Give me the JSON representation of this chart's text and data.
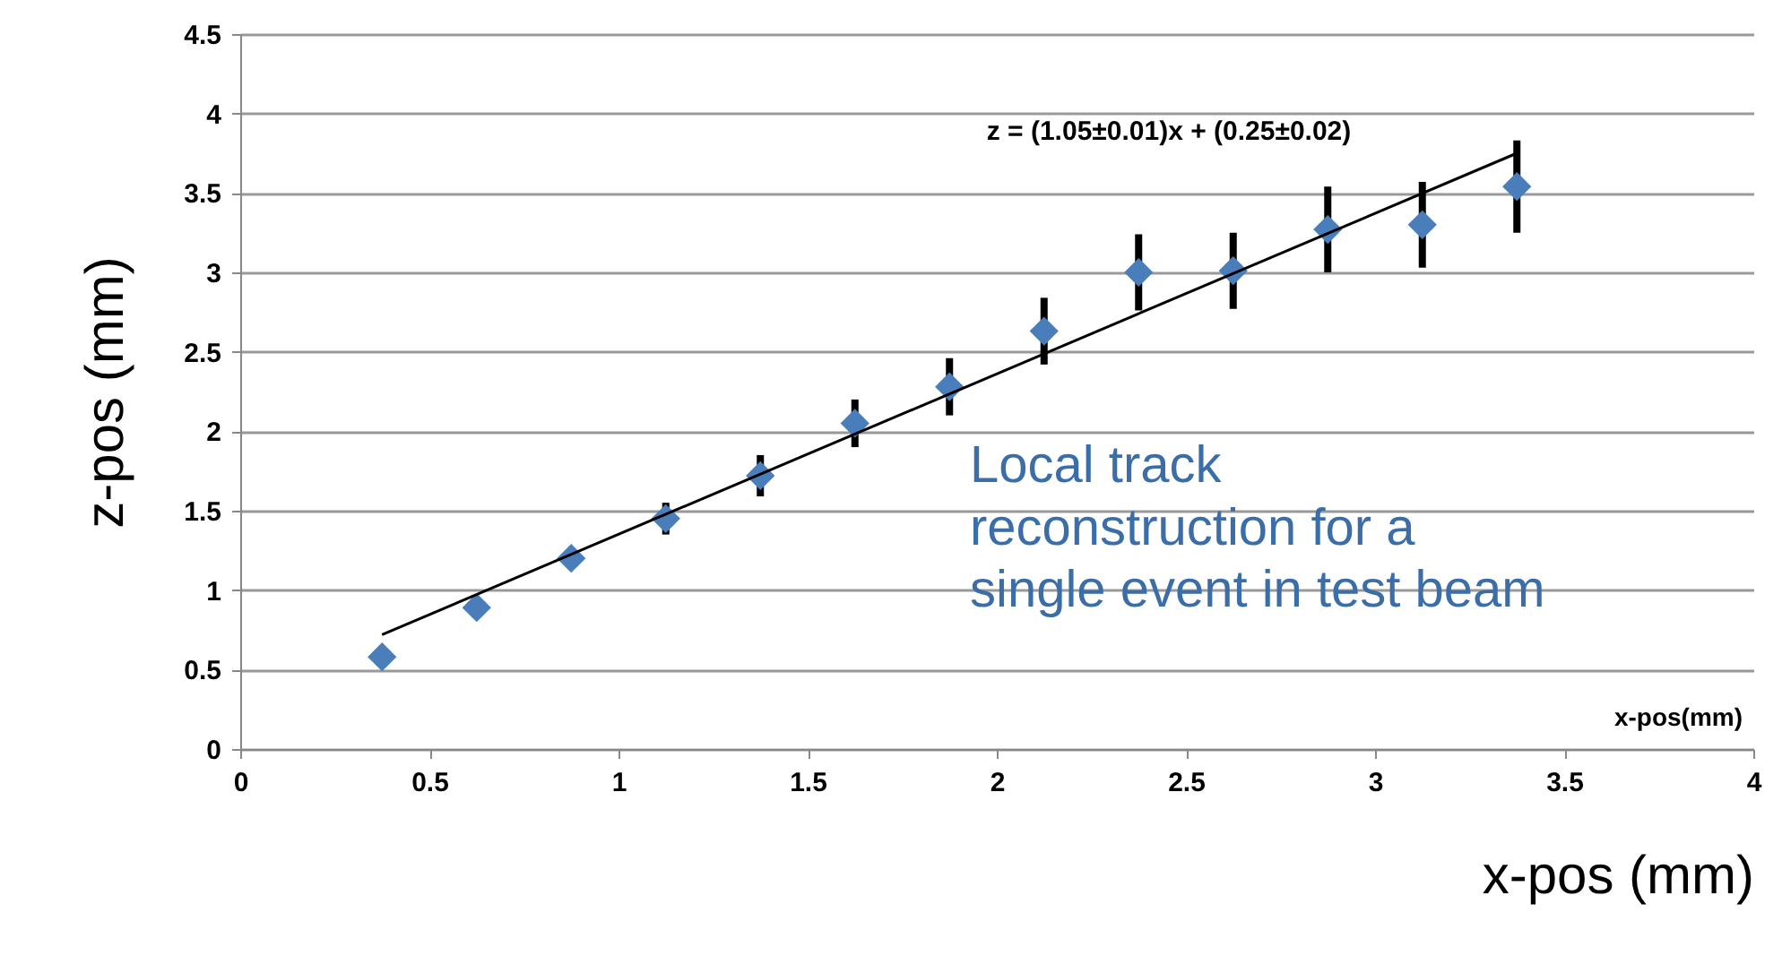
{
  "chart_data": {
    "type": "scatter",
    "xlabel": "x-pos (mm)",
    "ylabel": "z-pos (mm)",
    "xlim": [
      0,
      4
    ],
    "xticks": [
      0,
      0.5,
      1,
      1.5,
      2,
      2.5,
      3,
      3.5,
      4
    ],
    "ylim": [
      0,
      4.5
    ],
    "yticks": [
      0,
      0.5,
      1,
      1.5,
      2,
      2.5,
      3,
      3.5,
      4,
      4.5
    ],
    "grid": "y",
    "marker": "diamond",
    "x": [
      0.375,
      0.625,
      0.875,
      1.125,
      1.375,
      1.625,
      1.875,
      2.125,
      2.375,
      2.625,
      2.875,
      3.125,
      3.375
    ],
    "series": [
      {
        "color": "#4a7ebb",
        "values": [
          0.58,
          0.89,
          1.2,
          1.45,
          1.72,
          2.05,
          2.28,
          2.63,
          3.0,
          3.01,
          3.27,
          3.3,
          3.54
        ],
        "errors": [
          null,
          null,
          0.06,
          0.1,
          0.13,
          0.15,
          0.18,
          0.21,
          0.24,
          0.24,
          0.27,
          0.27,
          0.29
        ]
      },
      {
        "type": "line",
        "color": "#000000",
        "marker": "none",
        "x": [
          0.375,
          3.375
        ],
        "values": [
          0.72,
          3.75
        ]
      }
    ],
    "annotations": [
      "z = (1.05±0.01)x + (0.25±0.02)",
      "Local track\nreconstruction for a\nsingle event in test beam",
      "x-pos(mm)"
    ]
  }
}
